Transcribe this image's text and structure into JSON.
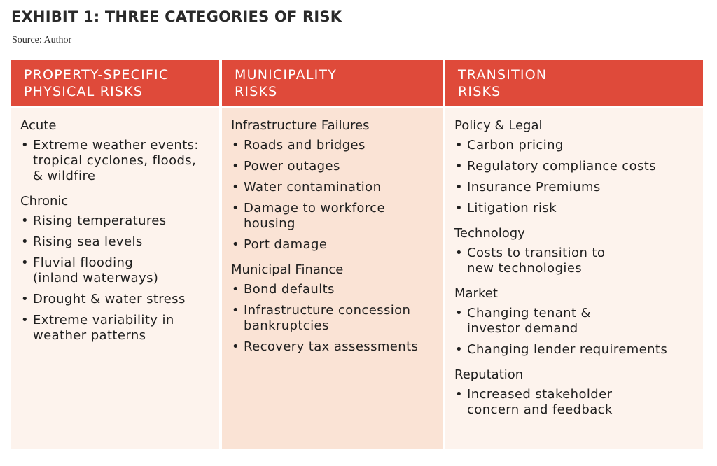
{
  "title": "EXHIBIT 1: THREE CATEGORIES OF RISK",
  "source": "Source: Author",
  "columns": [
    {
      "header": [
        "PROPERTY-SPECIFIC",
        "PHYSICAL RISKS"
      ],
      "sections": [
        {
          "title": "Acute",
          "items": [
            [
              "Extreme weather events:",
              "tropical cyclones, floods,",
              "& wildfire"
            ]
          ]
        },
        {
          "title": "Chronic",
          "items": [
            [
              "Rising temperatures"
            ],
            [
              "Rising sea levels"
            ],
            [
              "Fluvial flooding",
              "(inland waterways)"
            ],
            [
              "Drought & water stress"
            ],
            [
              "Extreme variability in",
              "weather patterns"
            ]
          ]
        }
      ]
    },
    {
      "header": [
        "MUNICIPALITY",
        "RISKS"
      ],
      "sections": [
        {
          "title": "Infrastructure Failures",
          "items": [
            [
              "Roads and bridges"
            ],
            [
              "Power outages"
            ],
            [
              "Water contamination"
            ],
            [
              "Damage to workforce",
              "housing"
            ],
            [
              "Port damage"
            ]
          ]
        },
        {
          "title": "Municipal Finance",
          "items": [
            [
              "Bond defaults"
            ],
            [
              "Infrastructure concession",
              "bankruptcies"
            ],
            [
              "Recovery tax assessments"
            ]
          ]
        }
      ]
    },
    {
      "header": [
        "TRANSITION",
        "RISKS"
      ],
      "sections": [
        {
          "title": "Policy & Legal",
          "items": [
            [
              "Carbon pricing"
            ],
            [
              "Regulatory compliance costs"
            ],
            [
              "Insurance Premiums"
            ],
            [
              "Litigation risk"
            ]
          ]
        },
        {
          "title": "Technology",
          "items": [
            [
              "Costs to transition to",
              "new technologies"
            ]
          ]
        },
        {
          "title": "Market",
          "items": [
            [
              "Changing tenant &",
              "investor demand"
            ],
            [
              "Changing lender requirements"
            ]
          ]
        },
        {
          "title": "Reputation",
          "items": [
            [
              "Increased stakeholder",
              "concern and feedback"
            ]
          ]
        }
      ]
    }
  ],
  "colors": {
    "header_bg": "#df4a3a",
    "header_text": "#ffffff",
    "body_light": "#fdf3ed",
    "body_mid": "#fae3d5"
  }
}
